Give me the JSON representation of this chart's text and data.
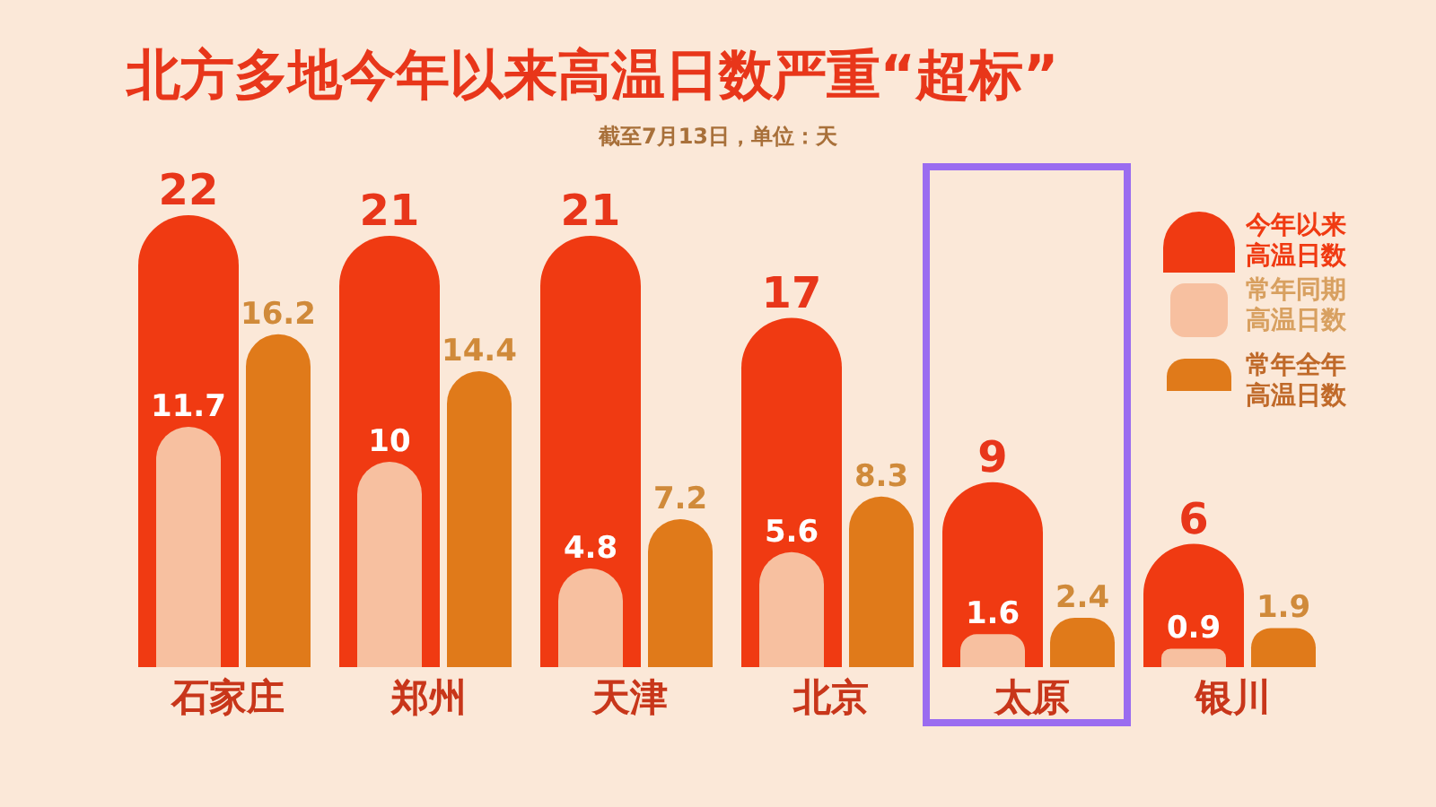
{
  "chart_data": {
    "type": "bar",
    "title": "北方多地今年以来高温日数严重“超标”",
    "subtitle": "截至7月13日，单位：天",
    "categories": [
      "石家庄",
      "郑州",
      "天津",
      "北京",
      "太原",
      "银川"
    ],
    "series": [
      {
        "name": "今年以来高温日数",
        "color": "#f03a12",
        "values": [
          22,
          21,
          21,
          17,
          9,
          6
        ]
      },
      {
        "name": "常年同期高温日数",
        "color": "#f7c0a0",
        "values": [
          11.7,
          10,
          4.8,
          5.6,
          1.6,
          0.9
        ]
      },
      {
        "name": "常年全年高温日数",
        "color": "#e07a1a",
        "values": [
          16.2,
          14.4,
          7.2,
          8.3,
          2.4,
          1.9
        ]
      }
    ],
    "data_labels": true,
    "legend": "right",
    "grid": false
  }
}
